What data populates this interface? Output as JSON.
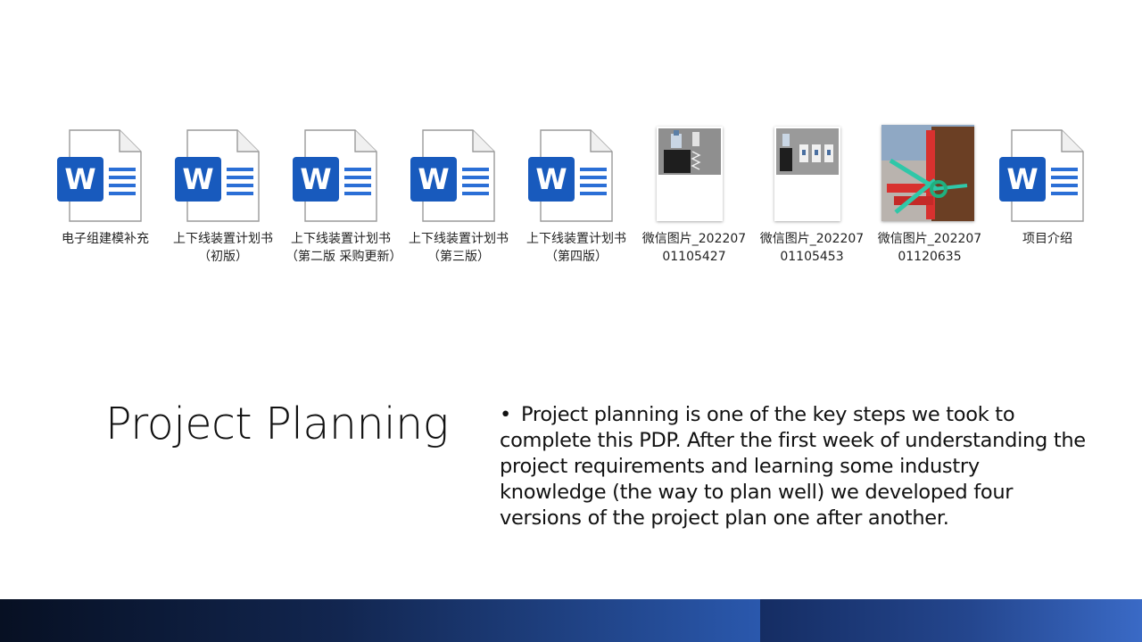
{
  "files": [
    {
      "name": "电子组建模补充",
      "kind": "word-icon"
    },
    {
      "name": "上下线装置计划书（初版）",
      "kind": "word-icon"
    },
    {
      "name": "上下线装置计划书（第二版 采购更新）",
      "kind": "word-icon"
    },
    {
      "name": "上下线装置计划书（第三版）",
      "kind": "word-icon"
    },
    {
      "name": "上下线装置计划书（第四版）",
      "kind": "word-icon"
    },
    {
      "name": "微信图片_20220701105427",
      "kind": "image-thumbnail"
    },
    {
      "name": "微信图片_20220701105453",
      "kind": "image-thumbnail"
    },
    {
      "name": "微信图片_20220701120635",
      "kind": "image-thumbnail"
    },
    {
      "name": "项目介绍",
      "kind": "word-icon"
    }
  ],
  "slide": {
    "title": "Project Planning",
    "bullet": "Project planning is one of the key steps we took to complete this PDP. After the first week of understanding the project requirements and learning some industry knowledge (the way to plan well) we developed four versions of the project plan one after another."
  },
  "colors": {
    "word_blue": "#185abd",
    "footer_dark": "#0b1733",
    "footer_blue": "#2f5fb8"
  }
}
